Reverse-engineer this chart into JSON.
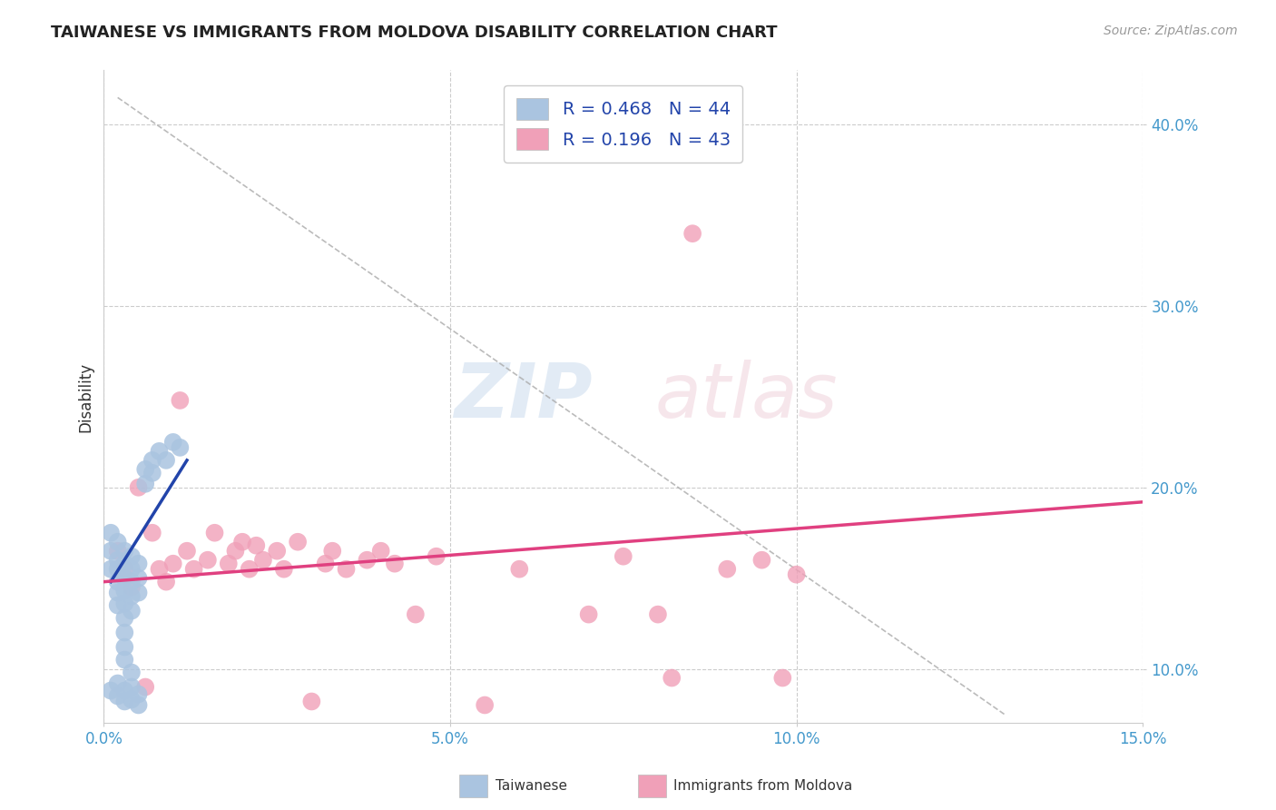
{
  "title": "TAIWANESE VS IMMIGRANTS FROM MOLDOVA DISABILITY CORRELATION CHART",
  "source_text": "Source: ZipAtlas.com",
  "ylabel": "Disability",
  "xlim": [
    0.0,
    0.15
  ],
  "ylim": [
    0.07,
    0.43
  ],
  "xticks": [
    0.0,
    0.05,
    0.1,
    0.15
  ],
  "xticklabels": [
    "0.0%",
    "5.0%",
    "10.0%",
    "15.0%"
  ],
  "yticks": [
    0.1,
    0.2,
    0.3,
    0.4
  ],
  "yticklabels": [
    "10.0%",
    "20.0%",
    "30.0%",
    "40.0%"
  ],
  "grid_color": "#cccccc",
  "background_color": "#ffffff",
  "legend_R_blue": "0.468",
  "legend_N_blue": "44",
  "legend_R_pink": "0.196",
  "legend_N_pink": "43",
  "blue_scatter": [
    [
      0.001,
      0.175
    ],
    [
      0.001,
      0.165
    ],
    [
      0.001,
      0.155
    ],
    [
      0.002,
      0.17
    ],
    [
      0.002,
      0.16
    ],
    [
      0.002,
      0.155
    ],
    [
      0.002,
      0.148
    ],
    [
      0.002,
      0.142
    ],
    [
      0.002,
      0.135
    ],
    [
      0.003,
      0.165
    ],
    [
      0.003,
      0.158
    ],
    [
      0.003,
      0.15
    ],
    [
      0.003,
      0.143
    ],
    [
      0.003,
      0.136
    ],
    [
      0.003,
      0.128
    ],
    [
      0.003,
      0.12
    ],
    [
      0.003,
      0.112
    ],
    [
      0.003,
      0.105
    ],
    [
      0.004,
      0.162
    ],
    [
      0.004,
      0.155
    ],
    [
      0.004,
      0.148
    ],
    [
      0.004,
      0.14
    ],
    [
      0.004,
      0.132
    ],
    [
      0.004,
      0.098
    ],
    [
      0.005,
      0.158
    ],
    [
      0.005,
      0.15
    ],
    [
      0.005,
      0.142
    ],
    [
      0.006,
      0.21
    ],
    [
      0.006,
      0.202
    ],
    [
      0.007,
      0.215
    ],
    [
      0.007,
      0.208
    ],
    [
      0.008,
      0.22
    ],
    [
      0.009,
      0.215
    ],
    [
      0.01,
      0.225
    ],
    [
      0.011,
      0.222
    ],
    [
      0.002,
      0.092
    ],
    [
      0.002,
      0.085
    ],
    [
      0.003,
      0.088
    ],
    [
      0.003,
      0.082
    ],
    [
      0.004,
      0.09
    ],
    [
      0.004,
      0.083
    ],
    [
      0.005,
      0.086
    ],
    [
      0.005,
      0.08
    ],
    [
      0.001,
      0.088
    ]
  ],
  "pink_scatter": [
    [
      0.002,
      0.165
    ],
    [
      0.003,
      0.155
    ],
    [
      0.004,
      0.145
    ],
    [
      0.005,
      0.2
    ],
    [
      0.006,
      0.09
    ],
    [
      0.007,
      0.175
    ],
    [
      0.008,
      0.155
    ],
    [
      0.009,
      0.148
    ],
    [
      0.01,
      0.158
    ],
    [
      0.011,
      0.248
    ],
    [
      0.012,
      0.165
    ],
    [
      0.013,
      0.155
    ],
    [
      0.015,
      0.16
    ],
    [
      0.016,
      0.175
    ],
    [
      0.018,
      0.158
    ],
    [
      0.019,
      0.165
    ],
    [
      0.02,
      0.17
    ],
    [
      0.021,
      0.155
    ],
    [
      0.022,
      0.168
    ],
    [
      0.023,
      0.16
    ],
    [
      0.025,
      0.165
    ],
    [
      0.026,
      0.155
    ],
    [
      0.028,
      0.17
    ],
    [
      0.03,
      0.082
    ],
    [
      0.032,
      0.158
    ],
    [
      0.033,
      0.165
    ],
    [
      0.035,
      0.155
    ],
    [
      0.038,
      0.16
    ],
    [
      0.04,
      0.165
    ],
    [
      0.042,
      0.158
    ],
    [
      0.045,
      0.13
    ],
    [
      0.048,
      0.162
    ],
    [
      0.055,
      0.08
    ],
    [
      0.06,
      0.155
    ],
    [
      0.07,
      0.13
    ],
    [
      0.075,
      0.162
    ],
    [
      0.08,
      0.13
    ],
    [
      0.082,
      0.095
    ],
    [
      0.085,
      0.34
    ],
    [
      0.09,
      0.155
    ],
    [
      0.095,
      0.16
    ],
    [
      0.098,
      0.095
    ],
    [
      0.1,
      0.152
    ]
  ],
  "blue_line_x": [
    0.001,
    0.012
  ],
  "blue_line_y": [
    0.148,
    0.215
  ],
  "pink_line_x": [
    0.0,
    0.15
  ],
  "pink_line_y": [
    0.148,
    0.192
  ],
  "dashed_line_x": [
    0.002,
    0.13
  ],
  "dashed_line_y": [
    0.415,
    0.075
  ],
  "blue_color": "#aac4e0",
  "blue_line_color": "#2244aa",
  "pink_color": "#f0a0b8",
  "pink_line_color": "#e04080",
  "title_color": "#222222",
  "axis_label_color": "#333333",
  "tick_label_color": "#4499cc",
  "source_color": "#999999",
  "legend_text_color": "#2244aa"
}
